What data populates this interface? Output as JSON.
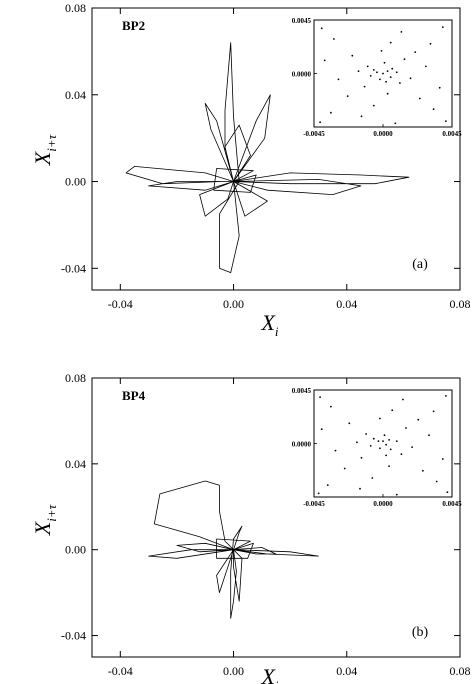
{
  "chart_data": [
    {
      "type": "line",
      "title": "BP2",
      "panel_label": "(a)",
      "xlabel": "X_i",
      "ylabel": "X_i+τ",
      "xlim": [
        -0.05,
        0.08
      ],
      "ylim": [
        -0.05,
        0.08
      ],
      "xticks": [
        "-0.04",
        "0.00",
        "0.04",
        "0.08"
      ],
      "yticks": [
        "-0.04",
        "0.00",
        "0.04",
        "0.08"
      ],
      "grid": false,
      "series": [
        {
          "values": [
            [
              0.0,
              0.0
            ],
            [
              -0.01,
              0.004
            ],
            [
              -0.035,
              0.007
            ],
            [
              -0.038,
              0.004
            ],
            [
              -0.025,
              -0.001
            ],
            [
              -0.004,
              0.0
            ],
            [
              0.0,
              0.0
            ],
            [
              0.02,
              0.004
            ],
            [
              0.045,
              0.003
            ],
            [
              0.062,
              0.002
            ],
            [
              0.05,
              -0.001
            ],
            [
              0.02,
              -0.001
            ],
            [
              0.0,
              0.0
            ],
            [
              0.006,
              0.012
            ],
            [
              0.002,
              0.026
            ],
            [
              -0.003,
              0.016
            ],
            [
              0.0,
              0.0
            ],
            [
              -0.003,
              0.014
            ],
            [
              -0.003,
              0.033
            ],
            [
              -0.001,
              0.064
            ],
            [
              0.0,
              0.03
            ],
            [
              0.002,
              0.0
            ],
            [
              -0.005,
              -0.015
            ],
            [
              -0.005,
              -0.04
            ],
            [
              -0.001,
              -0.042
            ],
            [
              0.002,
              -0.025
            ],
            [
              0.0,
              0.0
            ],
            [
              0.012,
              -0.004
            ],
            [
              0.035,
              -0.006
            ],
            [
              0.045,
              -0.002
            ],
            [
              0.03,
              0.001
            ],
            [
              0.0,
              0.0
            ],
            [
              0.008,
              0.028
            ],
            [
              0.013,
              0.04
            ],
            [
              0.011,
              0.02
            ],
            [
              0.0,
              0.0
            ],
            [
              -0.008,
              0.024
            ],
            [
              -0.01,
              0.036
            ],
            [
              -0.006,
              0.028
            ],
            [
              0.0,
              0.0
            ],
            [
              -0.012,
              -0.006
            ],
            [
              -0.01,
              -0.016
            ],
            [
              -0.002,
              -0.008
            ],
            [
              0.0,
              0.0
            ],
            [
              0.012,
              -0.009
            ],
            [
              0.004,
              -0.016
            ],
            [
              0.0,
              0.0
            ],
            [
              -0.02,
              0.0
            ],
            [
              -0.03,
              -0.002
            ],
            [
              -0.01,
              -0.004
            ],
            [
              0.0,
              0.0
            ],
            [
              0.007,
              0.005
            ],
            [
              -0.006,
              0.006
            ],
            [
              -0.007,
              -0.004
            ],
            [
              0.006,
              -0.005
            ],
            [
              0.008,
              0.003
            ],
            [
              0.0,
              0.0
            ]
          ]
        }
      ],
      "inset": {
        "type": "scatter",
        "xlim": [
          -0.0045,
          0.0045
        ],
        "ylim": [
          -0.0045,
          0.0045
        ],
        "xticks": [
          "-0.0045",
          "0.0000",
          "0.0045"
        ],
        "yticks": [
          "0.0045",
          "0.0000"
        ],
        "values": [
          [
            0.0,
            0.0
          ],
          [
            0.0003,
            0.0002
          ],
          [
            -0.0004,
            0.0001
          ],
          [
            0.0005,
            -0.0003
          ],
          [
            -0.0002,
            -0.0005
          ],
          [
            0.0006,
            0.0004
          ],
          [
            -0.0006,
            0.0003
          ],
          [
            0.0002,
            -0.0007
          ],
          [
            -0.0008,
            -0.0002
          ],
          [
            0.0009,
            0.0001
          ],
          [
            0.0001,
            0.0009
          ],
          [
            -0.001,
            0.0006
          ],
          [
            0.0011,
            -0.0008
          ],
          [
            -0.0012,
            -0.0011
          ],
          [
            0.0014,
            0.0012
          ],
          [
            -0.0016,
            0.0002
          ],
          [
            0.0018,
            -0.0004
          ],
          [
            0.0003,
            -0.0017
          ],
          [
            -0.0001,
            0.0019
          ],
          [
            -0.002,
            0.0015
          ],
          [
            0.0021,
            0.0018
          ],
          [
            -0.0023,
            -0.0019
          ],
          [
            0.0024,
            -0.0021
          ],
          [
            0.0005,
            0.0026
          ],
          [
            -0.0006,
            -0.0027
          ],
          [
            0.0028,
            0.0006
          ],
          [
            -0.0029,
            -0.0005
          ],
          [
            0.0031,
            0.0025
          ],
          [
            -0.0032,
            0.0029
          ],
          [
            0.0033,
            -0.003
          ],
          [
            -0.0034,
            -0.0033
          ],
          [
            0.0012,
            0.0035
          ],
          [
            -0.0014,
            -0.0036
          ],
          [
            0.0037,
            -0.0012
          ],
          [
            -0.0038,
            0.0011
          ],
          [
            0.0039,
            0.0039
          ],
          [
            -0.004,
            0.0038
          ],
          [
            0.0041,
            -0.004
          ],
          [
            -0.0041,
            -0.0041
          ],
          [
            0.0008,
            -0.0042
          ]
        ]
      }
    },
    {
      "type": "line",
      "title": "BP4",
      "panel_label": "(b)",
      "xlabel": "X_i",
      "ylabel": "X_i+τ",
      "xlim": [
        -0.05,
        0.08
      ],
      "ylim": [
        -0.05,
        0.08
      ],
      "xticks": [
        "-0.04",
        "0.00",
        "0.04",
        "0.08"
      ],
      "yticks": [
        "-0.04",
        "0.00",
        "0.04",
        "0.08"
      ],
      "grid": false,
      "series": [
        {
          "values": [
            [
              0.0,
              0.0
            ],
            [
              -0.012,
              0.006
            ],
            [
              -0.028,
              0.012
            ],
            [
              -0.026,
              0.026
            ],
            [
              -0.01,
              0.032
            ],
            [
              -0.005,
              0.03
            ],
            [
              -0.005,
              0.018
            ],
            [
              -0.003,
              0.004
            ],
            [
              0.0,
              0.0
            ],
            [
              -0.015,
              0.0
            ],
            [
              -0.03,
              -0.003
            ],
            [
              -0.02,
              -0.004
            ],
            [
              0.0,
              0.0
            ],
            [
              0.012,
              -0.002
            ],
            [
              0.03,
              -0.003
            ],
            [
              0.02,
              -0.001
            ],
            [
              0.0,
              0.0
            ],
            [
              0.002,
              0.008
            ],
            [
              0.003,
              0.011
            ],
            [
              0.0,
              0.005
            ],
            [
              -0.001,
              -0.01
            ],
            [
              -0.001,
              -0.032
            ],
            [
              0.0,
              -0.024
            ],
            [
              0.001,
              -0.01
            ],
            [
              0.0,
              0.0
            ],
            [
              0.003,
              -0.004
            ],
            [
              0.002,
              -0.024
            ],
            [
              0.0,
              -0.008
            ],
            [
              0.0,
              0.0
            ],
            [
              -0.006,
              -0.012
            ],
            [
              -0.005,
              -0.02
            ],
            [
              -0.002,
              -0.008
            ],
            [
              0.0,
              0.0
            ],
            [
              -0.01,
              0.003
            ],
            [
              -0.02,
              0.002
            ],
            [
              -0.012,
              -0.001
            ],
            [
              0.0,
              0.0
            ],
            [
              0.01,
              0.001
            ],
            [
              0.015,
              -0.002
            ],
            [
              0.008,
              -0.002
            ],
            [
              0.0,
              0.0
            ],
            [
              0.006,
              0.004
            ],
            [
              -0.006,
              0.005
            ],
            [
              -0.006,
              -0.004
            ],
            [
              0.005,
              -0.004
            ],
            [
              0.007,
              0.003
            ],
            [
              0.0,
              0.0
            ]
          ]
        }
      ],
      "inset": {
        "type": "scatter",
        "xlim": [
          -0.0045,
          0.0045
        ],
        "ylim": [
          -0.0045,
          0.0045
        ],
        "xticks": [
          "-0.0045",
          "0.0000",
          "0.0045"
        ],
        "yticks": [
          "0.0045",
          "0.0000"
        ],
        "values": [
          [
            0.0,
            0.0002
          ],
          [
            0.0002,
            -0.0001
          ],
          [
            -0.0003,
            0.0002
          ],
          [
            0.0004,
            0.0003
          ],
          [
            -0.0002,
            -0.0004
          ],
          [
            0.0005,
            -0.0005
          ],
          [
            -0.0006,
            0.0004
          ],
          [
            0.0001,
            0.0007
          ],
          [
            -0.0008,
            -0.0002
          ],
          [
            0.0009,
            0.0002
          ],
          [
            0.0002,
            -0.001
          ],
          [
            -0.0011,
            0.0008
          ],
          [
            0.0012,
            -0.0009
          ],
          [
            -0.0014,
            -0.0012
          ],
          [
            0.0015,
            0.0013
          ],
          [
            -0.0017,
            0.0001
          ],
          [
            0.0019,
            -0.0003
          ],
          [
            0.0004,
            -0.0019
          ],
          [
            -0.0002,
            0.0021
          ],
          [
            -0.0022,
            0.0017
          ],
          [
            0.0023,
            0.002
          ],
          [
            -0.0025,
            -0.0021
          ],
          [
            0.0026,
            -0.0023
          ],
          [
            0.0006,
            0.0028
          ],
          [
            -0.0007,
            -0.0029
          ],
          [
            0.003,
            0.0007
          ],
          [
            -0.0031,
            -0.0006
          ],
          [
            0.0033,
            0.0027
          ],
          [
            -0.0034,
            0.0031
          ],
          [
            0.0035,
            -0.0032
          ],
          [
            -0.0036,
            -0.0035
          ],
          [
            0.0013,
            0.0037
          ],
          [
            -0.0015,
            -0.0038
          ],
          [
            0.0039,
            -0.0013
          ],
          [
            -0.004,
            0.0012
          ],
          [
            0.0041,
            0.004
          ],
          [
            -0.0041,
            0.0039
          ],
          [
            0.0042,
            -0.0041
          ],
          [
            -0.0042,
            -0.0042
          ],
          [
            0.0009,
            -0.0043
          ]
        ]
      }
    }
  ]
}
